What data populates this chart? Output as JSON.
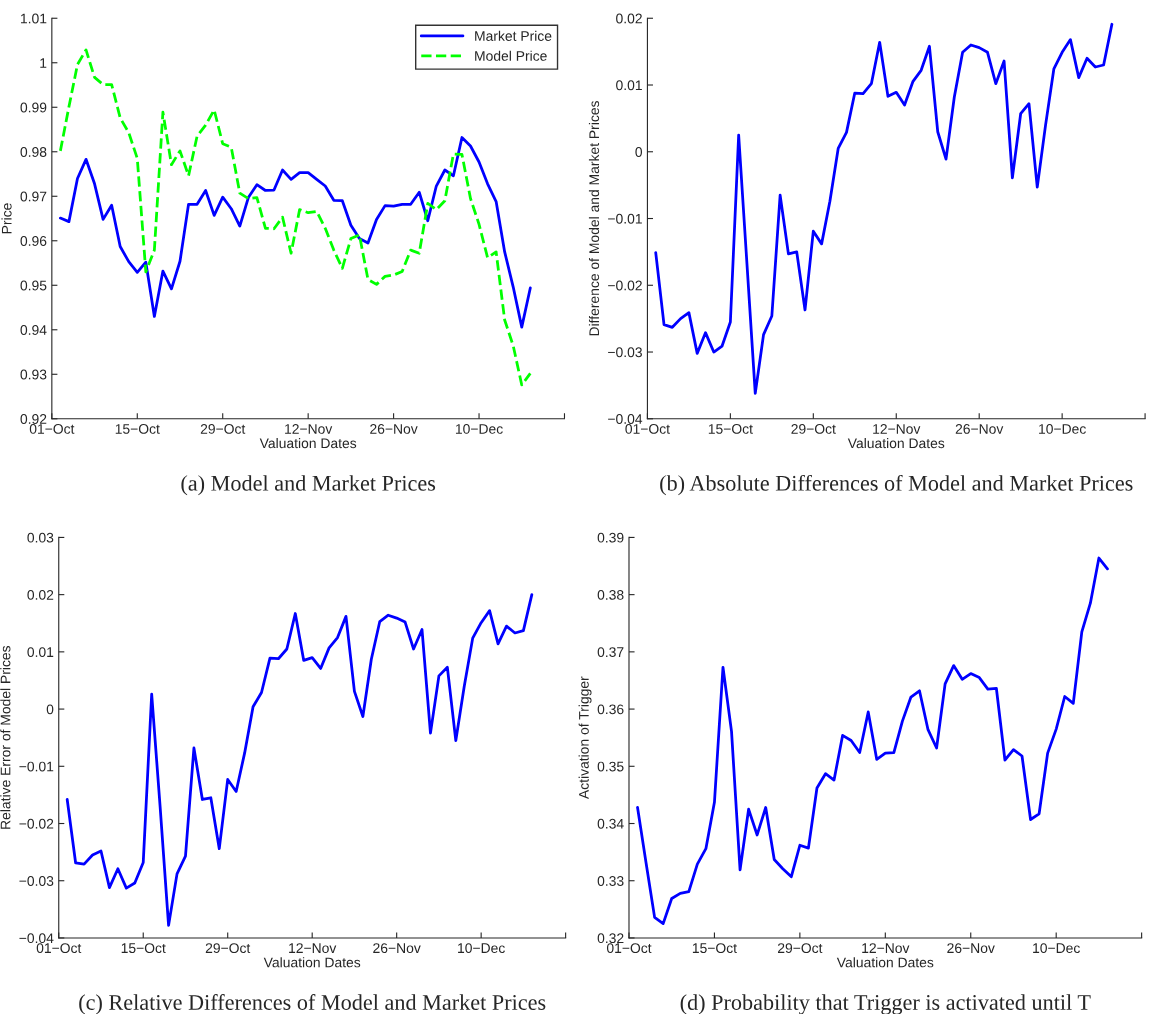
{
  "chart_data": [
    {
      "type": "line",
      "title": "(a) Model and Market Prices",
      "xlabel": "Valuation Dates",
      "ylabel": "Price",
      "categories": [
        "01−Oct",
        null,
        null,
        null,
        null,
        null,
        null,
        null,
        null,
        null,
        "15−Oct",
        null,
        null,
        null,
        null,
        null,
        null,
        null,
        null,
        null,
        "29−Oct",
        null,
        null,
        null,
        null,
        null,
        null,
        null,
        null,
        null,
        "12−Nov",
        null,
        null,
        null,
        null,
        null,
        null,
        null,
        null,
        null,
        "26−Nov",
        null,
        null,
        null,
        null,
        null,
        null,
        null,
        null,
        null,
        "10−Dec",
        null,
        null,
        null,
        null,
        null,
        null,
        null,
        null,
        null,
        null
      ],
      "ylim": [
        0.92,
        1.01
      ],
      "yticks": [
        0.92,
        0.93,
        0.94,
        0.95,
        0.96,
        0.97,
        0.98,
        0.99,
        1,
        1.01
      ],
      "grid": false,
      "legend": "top right",
      "marker": "none",
      "series": [
        {
          "name": "Market Price",
          "color": "#0000ff",
          "line_style": "solid",
          "values": [
            null,
            0.9651,
            0.9643,
            0.974,
            0.9783,
            0.9728,
            0.9648,
            0.968,
            0.9587,
            0.9553,
            0.9529,
            0.9552,
            0.943,
            0.9532,
            0.9492,
            0.9554,
            0.9682,
            0.9682,
            0.9713,
            0.9657,
            0.9698,
            0.9672,
            0.9633,
            0.9697,
            0.9726,
            0.9713,
            0.9714,
            0.9759,
            0.9738,
            0.9753,
            0.9753,
            0.9738,
            0.9723,
            0.9691,
            0.969,
            0.9635,
            0.9605,
            0.9595,
            0.9648,
            0.9679,
            0.9678,
            0.9682,
            0.9682,
            0.9709,
            0.9645,
            0.9723,
            0.9759,
            0.9746,
            0.9832,
            0.9813,
            0.9777,
            0.9728,
            0.9688,
            0.9575,
            0.9496,
            0.9406,
            0.9494,
            null,
            null,
            null,
            null
          ]
        },
        {
          "name": "Model Price",
          "color": "#00ff00",
          "line_style": "dashed",
          "values": [
            null,
            0.9802,
            0.9901,
            0.9996,
            1.0029,
            0.9967,
            0.9951,
            0.9951,
            0.9876,
            0.9843,
            0.9785,
            0.953,
            0.9579,
            0.9889,
            0.9771,
            0.9802,
            0.9746,
            0.9835,
            0.986,
            0.9894,
            0.9818,
            0.981,
            0.9707,
            0.9695,
            0.9697,
            0.9628,
            0.9627,
            0.9653,
            0.9572,
            0.967,
            0.9663,
            0.9666,
            0.9628,
            0.9579,
            0.9538,
            0.9605,
            0.9613,
            0.9513,
            0.9502,
            0.952,
            0.9523,
            0.9531,
            0.9579,
            0.9572,
            0.9684,
            0.967,
            0.969,
            0.9795,
            0.9794,
            0.9695,
            0.9637,
            0.9562,
            0.9575,
            0.9422,
            0.9364,
            0.9276,
            0.9302,
            null,
            null,
            null,
            null
          ]
        }
      ]
    },
    {
      "type": "line",
      "title": "(b) Absolute Differences of Model and Market Prices",
      "xlabel": "Valuation Dates",
      "ylabel": "Difference of Model and Market Prices",
      "categories": [
        "01−Oct",
        null,
        null,
        null,
        null,
        null,
        null,
        null,
        null,
        null,
        "15−Oct",
        null,
        null,
        null,
        null,
        null,
        null,
        null,
        null,
        null,
        "29−Oct",
        null,
        null,
        null,
        null,
        null,
        null,
        null,
        null,
        null,
        "12−Nov",
        null,
        null,
        null,
        null,
        null,
        null,
        null,
        null,
        null,
        "26−Nov",
        null,
        null,
        null,
        null,
        null,
        null,
        null,
        null,
        null,
        "10−Dec",
        null,
        null,
        null,
        null,
        null,
        null,
        null,
        null,
        null,
        null
      ],
      "ylim": [
        -0.04,
        0.02
      ],
      "yticks": [
        {
          "value": -0.04,
          "label": "−0.04"
        },
        {
          "value": -0.03,
          "label": "−0.03"
        },
        {
          "value": -0.02,
          "label": "−0.02"
        },
        {
          "value": -0.01,
          "label": "−0.01"
        },
        0,
        0.01,
        0.02
      ],
      "grid": false,
      "marker": "none",
      "series": [
        {
          "color": "#0000ff",
          "line_style": "solid",
          "values": [
            null,
            -0.0151,
            -0.0259,
            -0.0263,
            -0.025,
            -0.0241,
            -0.0302,
            -0.0271,
            -0.03,
            -0.0291,
            -0.0255,
            0.0025,
            -0.0168,
            -0.0362,
            -0.0274,
            -0.0246,
            -0.0065,
            -0.0153,
            -0.015,
            -0.0237,
            -0.0119,
            -0.0138,
            -0.0074,
            0.0005,
            0.0029,
            0.0088,
            0.0087,
            0.0102,
            0.0164,
            0.0083,
            0.0089,
            0.007,
            0.0105,
            0.0122,
            0.0158,
            0.003,
            -0.0011,
            0.0082,
            0.0149,
            0.016,
            0.0156,
            0.0149,
            0.0102,
            0.0136,
            -0.0039,
            0.0057,
            0.0072,
            -0.0053,
            0.004,
            0.0124,
            0.0149,
            0.0168,
            0.0111,
            0.014,
            0.0127,
            0.013,
            0.0191,
            null,
            null,
            null,
            null
          ]
        }
      ]
    },
    {
      "type": "line",
      "title": "(c) Relative Differences of Model and Market Prices",
      "xlabel": "Valuation Dates",
      "ylabel": "Relative Error of Model Prices",
      "categories": [
        "01−Oct",
        null,
        null,
        null,
        null,
        null,
        null,
        null,
        null,
        null,
        "15−Oct",
        null,
        null,
        null,
        null,
        null,
        null,
        null,
        null,
        null,
        "29−Oct",
        null,
        null,
        null,
        null,
        null,
        null,
        null,
        null,
        null,
        "12−Nov",
        null,
        null,
        null,
        null,
        null,
        null,
        null,
        null,
        null,
        "26−Nov",
        null,
        null,
        null,
        null,
        null,
        null,
        null,
        null,
        null,
        "10−Dec",
        null,
        null,
        null,
        null,
        null,
        null,
        null,
        null,
        null,
        null
      ],
      "ylim": [
        -0.04,
        0.03
      ],
      "yticks": [
        {
          "value": -0.04,
          "label": "−0.04"
        },
        {
          "value": -0.03,
          "label": "−0.03"
        },
        {
          "value": -0.02,
          "label": "−0.02"
        },
        {
          "value": -0.01,
          "label": "−0.01"
        },
        0,
        0.01,
        0.02,
        0.03
      ],
      "grid": false,
      "marker": "none",
      "series": [
        {
          "color": "#0000ff",
          "line_style": "solid",
          "values": [
            null,
            -0.0158,
            -0.0269,
            -0.0271,
            -0.0255,
            -0.0248,
            -0.0312,
            -0.0279,
            -0.0313,
            -0.0304,
            -0.0268,
            0.0026,
            -0.0171,
            -0.0378,
            -0.0288,
            -0.0257,
            -0.0068,
            -0.0158,
            -0.0155,
            -0.0244,
            -0.0123,
            -0.0144,
            -0.0077,
            0.0004,
            0.0029,
            0.0089,
            0.0088,
            0.0105,
            0.0167,
            0.0085,
            0.009,
            0.0071,
            0.0107,
            0.0125,
            0.0162,
            0.0031,
            -0.0013,
            0.0087,
            0.0153,
            0.0164,
            0.0159,
            0.0152,
            0.0105,
            0.0139,
            -0.0042,
            0.0058,
            0.0073,
            -0.0055,
            0.004,
            0.0124,
            0.0151,
            0.0172,
            0.0114,
            0.0145,
            0.0133,
            0.0137,
            0.02,
            null,
            null,
            null,
            null
          ]
        }
      ]
    },
    {
      "type": "line",
      "title": "(d) Probability that Trigger is activated until T",
      "xlabel": "Valuation Dates",
      "ylabel": "Activation of Trigger",
      "categories": [
        "01−Oct",
        null,
        null,
        null,
        null,
        null,
        null,
        null,
        null,
        null,
        "15−Oct",
        null,
        null,
        null,
        null,
        null,
        null,
        null,
        null,
        null,
        "29−Oct",
        null,
        null,
        null,
        null,
        null,
        null,
        null,
        null,
        null,
        "12−Nov",
        null,
        null,
        null,
        null,
        null,
        null,
        null,
        null,
        null,
        "26−Nov",
        null,
        null,
        null,
        null,
        null,
        null,
        null,
        null,
        null,
        "10−Dec",
        null,
        null,
        null,
        null,
        null,
        null,
        null,
        null,
        null,
        null
      ],
      "ylim": [
        0.32,
        0.39
      ],
      "yticks": [
        0.32,
        0.33,
        0.34,
        0.35,
        0.36,
        0.37,
        0.38,
        0.39
      ],
      "grid": false,
      "marker": "none",
      "series": [
        {
          "color": "#0000ff",
          "line_style": "solid",
          "values": [
            null,
            0.3428,
            0.3331,
            0.3236,
            0.3225,
            0.3269,
            0.3278,
            0.3281,
            0.3329,
            0.3356,
            0.3437,
            0.3673,
            0.3561,
            0.3319,
            0.3425,
            0.338,
            0.3428,
            0.3337,
            0.3321,
            0.3307,
            0.3362,
            0.3357,
            0.3462,
            0.3487,
            0.3476,
            0.3554,
            0.3545,
            0.3524,
            0.3595,
            0.3512,
            0.3523,
            0.3524,
            0.3579,
            0.3621,
            0.3632,
            0.3564,
            0.3532,
            0.3644,
            0.3676,
            0.3652,
            0.3662,
            0.3655,
            0.3635,
            0.3636,
            0.3511,
            0.3529,
            0.3518,
            0.3407,
            0.3417,
            0.3523,
            0.3565,
            0.3622,
            0.361,
            0.3735,
            0.3785,
            0.3864,
            0.3845,
            null,
            null,
            null,
            null
          ]
        }
      ]
    }
  ]
}
